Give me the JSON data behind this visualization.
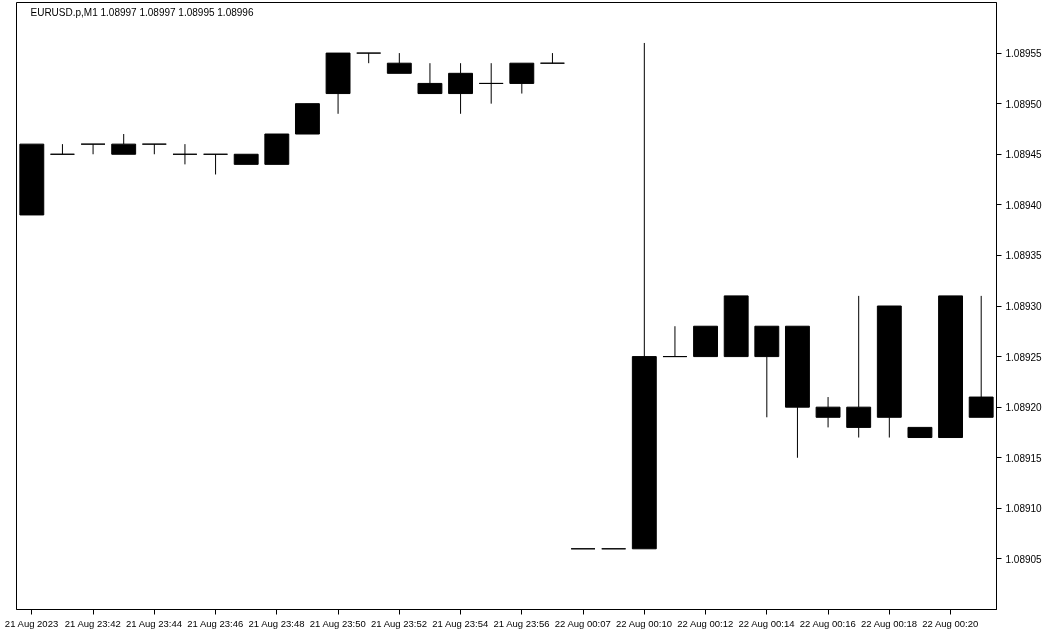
{
  "chart_data": {
    "type": "candlestick",
    "title": "EURUSD.p,M1  1.08997 1.08997 1.08995 1.08996",
    "color": "#000000",
    "categories": [
      "21 Aug 2023",
      null,
      "21 Aug 23:42",
      null,
      "21 Aug 23:44",
      null,
      "21 Aug 23:46",
      null,
      "21 Aug 23:48",
      null,
      "21 Aug 23:50",
      null,
      "21 Aug 23:52",
      null,
      "21 Aug 23:54",
      null,
      "21 Aug 23:56",
      null,
      "22 Aug 00:07",
      null,
      "22 Aug 00:10",
      null,
      "22 Aug 00:12",
      null,
      "22 Aug 00:14",
      null,
      "22 Aug 00:16",
      null,
      "22 Aug 00:18",
      null,
      "22 Aug 00:20",
      null
    ],
    "ohlc": [
      [
        1.08946,
        1.08946,
        1.08939,
        1.08939
      ],
      [
        1.08945,
        1.08946,
        1.08945,
        1.08945
      ],
      [
        1.08946,
        1.08946,
        1.08945,
        1.08946
      ],
      [
        1.08946,
        1.08947,
        1.08945,
        1.08945
      ],
      [
        1.08946,
        1.08946,
        1.08945,
        1.08946
      ],
      [
        1.08945,
        1.08946,
        1.08944,
        1.08945
      ],
      [
        1.08945,
        1.08945,
        1.08943,
        1.08945
      ],
      [
        1.08945,
        1.08945,
        1.08944,
        1.08944
      ],
      [
        1.08947,
        1.08947,
        1.08944,
        1.08944
      ],
      [
        1.0895,
        1.0895,
        1.08947,
        1.08947
      ],
      [
        1.08955,
        1.08955,
        1.08949,
        1.08951
      ],
      [
        1.08955,
        1.08955,
        1.08954,
        1.08955
      ],
      [
        1.08954,
        1.08955,
        1.08953,
        1.08953
      ],
      [
        1.08952,
        1.08954,
        1.08951,
        1.08951
      ],
      [
        1.08953,
        1.08954,
        1.08949,
        1.08951
      ],
      [
        1.08952,
        1.08954,
        1.0895,
        1.08952
      ],
      [
        1.08954,
        1.08954,
        1.08951,
        1.08952
      ],
      [
        1.08954,
        1.08955,
        1.08954,
        1.08954
      ],
      [
        1.08906,
        1.08906,
        1.08906,
        1.08906
      ],
      [
        1.08906,
        1.08906,
        1.08906,
        1.08906
      ],
      [
        1.08925,
        1.08956,
        1.08906,
        1.08906
      ],
      [
        1.08925,
        1.08928,
        1.08925,
        1.08925
      ],
      [
        1.08928,
        1.08928,
        1.08925,
        1.08925
      ],
      [
        1.08931,
        1.08931,
        1.08925,
        1.08925
      ],
      [
        1.08928,
        1.08928,
        1.08919,
        1.08925
      ],
      [
        1.08928,
        1.08928,
        1.08915,
        1.0892
      ],
      [
        1.0892,
        1.08921,
        1.08918,
        1.08919
      ],
      [
        1.0892,
        1.08931,
        1.08917,
        1.08918
      ],
      [
        1.0893,
        1.0893,
        1.08917,
        1.08919
      ],
      [
        1.08918,
        1.08918,
        1.08917,
        1.08917
      ],
      [
        1.08931,
        1.08931,
        1.08917,
        1.08917
      ],
      [
        1.08921,
        1.08931,
        1.08919,
        1.08919
      ]
    ],
    "ylim": [
      1.089,
      1.0896
    ],
    "yticks": [
      {
        "value": 1.08905,
        "label": "1.08905"
      },
      {
        "value": 1.0891,
        "label": "1.08910"
      },
      {
        "value": 1.08915,
        "label": "1.08915"
      },
      {
        "value": 1.0892,
        "label": "1.08920"
      },
      {
        "value": 1.08925,
        "label": "1.08925"
      },
      {
        "value": 1.0893,
        "label": "1.08930"
      },
      {
        "value": 1.08935,
        "label": "1.08935"
      },
      {
        "value": 1.0894,
        "label": "1.08940"
      },
      {
        "value": 1.08945,
        "label": "1.08945"
      },
      {
        "value": 1.0895,
        "label": "1.08950"
      },
      {
        "value": 1.08955,
        "label": "1.08955"
      }
    ]
  }
}
